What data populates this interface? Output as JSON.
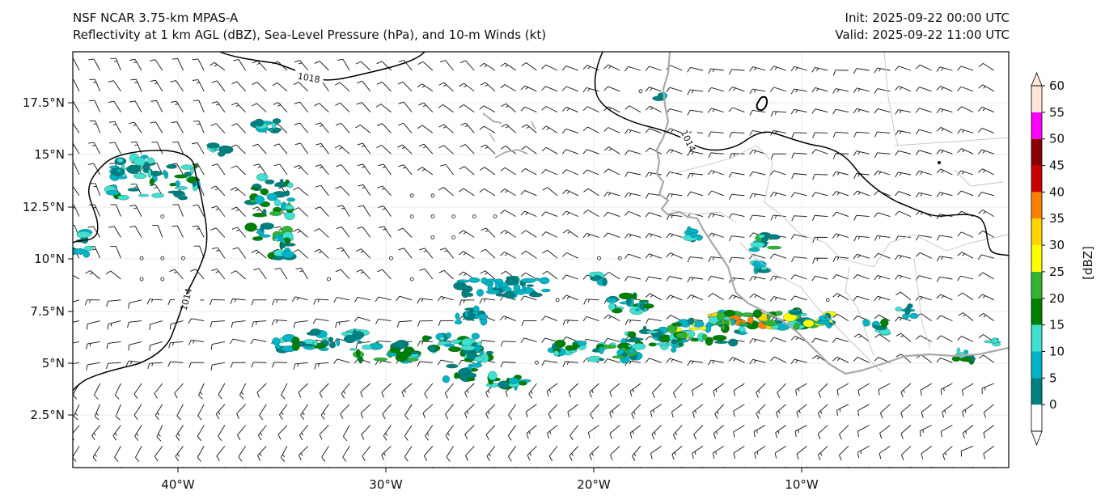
{
  "title": {
    "line1": "NSF NCAR 3.75-km MPAS-A",
    "line2": "Reflectivity at 1 km AGL (dBZ), Sea-Level Pressure (hPa), and 10-m Winds (kt)",
    "init": "Init: 2025-09-22 00:00 UTC",
    "valid": "Valid: 2025-09-22 11:00 UTC"
  },
  "axes": {
    "lat_ticks": [
      "17.5°N",
      "15°N",
      "12.5°N",
      "10°N",
      "7.5°N",
      "5°N",
      "2.5°N"
    ],
    "lon_ticks": [
      "40°W",
      "30°W",
      "20°W",
      "10°W"
    ]
  },
  "isobars": [
    "1018",
    "1014",
    "1014"
  ],
  "colorbar": {
    "unit": "[dBZ]",
    "ticks": [
      "0",
      "5",
      "10",
      "15",
      "20",
      "25",
      "30",
      "35",
      "40",
      "45",
      "50",
      "55",
      "60"
    ],
    "colors": [
      "#ffffff",
      "#008080",
      "#00b4c8",
      "#40e0d0",
      "#008000",
      "#32b432",
      "#ffff00",
      "#ffd700",
      "#ff8000",
      "#cc0000",
      "#8b0000",
      "#ff00ff",
      "#ffe4d8"
    ]
  },
  "colors": {
    "coastline": "#a8a8a8",
    "borders": "#c0c0c0",
    "isobar": "#000000",
    "grid": "#e8e8e8"
  }
}
